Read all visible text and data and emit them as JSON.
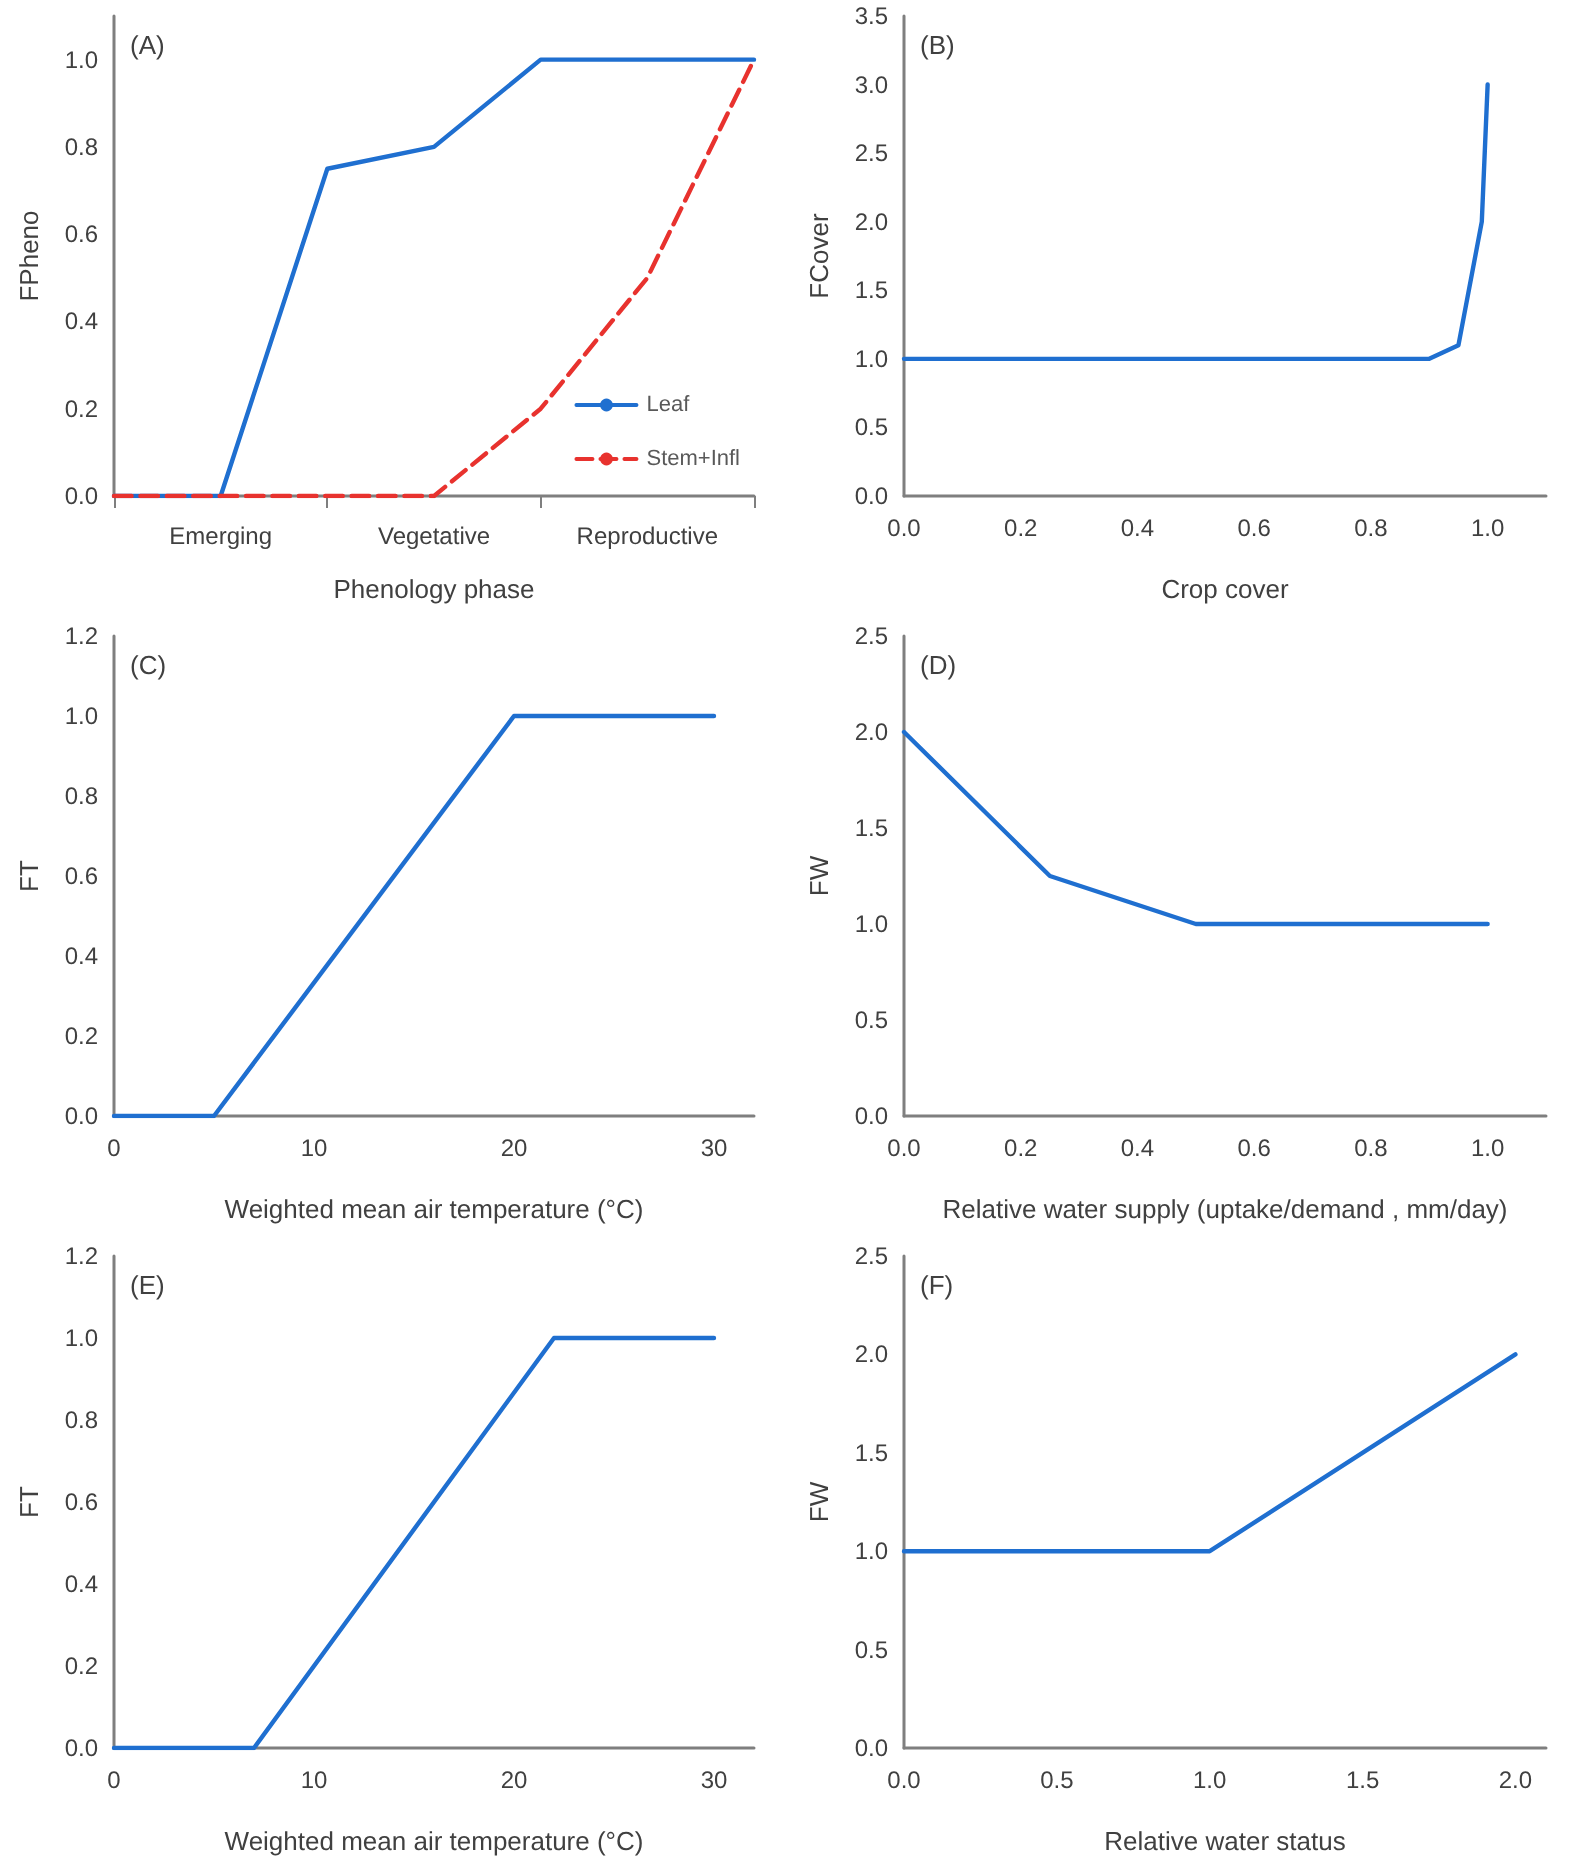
{
  "chart_data": [
    {
      "type": "line",
      "annotations": [
        "(A)"
      ],
      "xlabel": "Phenology phase",
      "ylabel": "FPheno",
      "categories": [
        null,
        "Emerging",
        null,
        "Vegetative",
        null,
        "Reproductive",
        null
      ],
      "ylim": [
        0,
        1.1
      ],
      "yticks": [
        {
          "value": 0,
          "label": "0.0"
        },
        {
          "value": 0.2,
          "label": "0.2"
        },
        {
          "value": 0.4,
          "label": "0.4"
        },
        {
          "value": 0.6,
          "label": "0.6"
        },
        {
          "value": 0.8,
          "label": "0.8"
        },
        {
          "value": 1,
          "label": "1.0"
        }
      ],
      "grid": false,
      "legend": "bottom right",
      "marker": "none",
      "series": [
        {
          "name": "Leaf",
          "color": "#1f6fd0",
          "line_style": "solid",
          "values": [
            0,
            0,
            0.75,
            0.8,
            1,
            1,
            1
          ]
        },
        {
          "name": "Stem+Infl",
          "color": "#e8322e",
          "line_style": "dashed",
          "values": [
            0,
            0,
            0,
            0,
            0.2,
            0.5,
            1
          ]
        }
      ]
    },
    {
      "type": "line",
      "annotations": [
        "(B)"
      ],
      "xlabel": "Crop cover",
      "ylabel": "FCover",
      "xlim": [
        0,
        1.1
      ],
      "xticks": [
        {
          "value": 0,
          "label": "0.0"
        },
        {
          "value": 0.2,
          "label": "0.2"
        },
        {
          "value": 0.4,
          "label": "0.4"
        },
        {
          "value": 0.6,
          "label": "0.6"
        },
        {
          "value": 0.8,
          "label": "0.8"
        },
        {
          "value": 1,
          "label": "1.0"
        }
      ],
      "ylim": [
        0,
        3.5
      ],
      "yticks": [
        {
          "value": 0,
          "label": "0.0"
        },
        {
          "value": 0.5,
          "label": "0.5"
        },
        {
          "value": 1,
          "label": "1.0"
        },
        {
          "value": 1.5,
          "label": "1.5"
        },
        {
          "value": 2,
          "label": "2.0"
        },
        {
          "value": 2.5,
          "label": "2.5"
        },
        {
          "value": 3,
          "label": "3.0"
        },
        {
          "value": 3.5,
          "label": "3.5"
        }
      ],
      "grid": false,
      "marker": "none",
      "series": [
        {
          "color": "#1f6fd0",
          "x": [
            0,
            0.9,
            0.95,
            0.99,
            1
          ],
          "values": [
            1,
            1,
            1.1,
            2,
            3
          ]
        }
      ]
    },
    {
      "type": "line",
      "annotations": [
        "(C)"
      ],
      "xlabel": "Weighted mean air temperature (°C)",
      "ylabel": "FT",
      "xlim": [
        0,
        32
      ],
      "xticks": [
        0,
        10,
        20,
        30
      ],
      "ylim": [
        0,
        1.2
      ],
      "yticks": [
        {
          "value": 0,
          "label": "0.0"
        },
        {
          "value": 0.2,
          "label": "0.2"
        },
        {
          "value": 0.4,
          "label": "0.4"
        },
        {
          "value": 0.6,
          "label": "0.6"
        },
        {
          "value": 0.8,
          "label": "0.8"
        },
        {
          "value": 1,
          "label": "1.0"
        },
        {
          "value": 1.2,
          "label": "1.2"
        }
      ],
      "grid": false,
      "marker": "none",
      "series": [
        {
          "color": "#1f6fd0",
          "x": [
            0,
            5,
            20,
            30
          ],
          "values": [
            0,
            0,
            1,
            1
          ]
        }
      ]
    },
    {
      "type": "line",
      "annotations": [
        "(D)"
      ],
      "xlabel": "Relative water supply (uptake/demand , mm/day)",
      "ylabel": "FW",
      "xlim": [
        0,
        1.1
      ],
      "xticks": [
        {
          "value": 0,
          "label": "0.0"
        },
        {
          "value": 0.2,
          "label": "0.2"
        },
        {
          "value": 0.4,
          "label": "0.4"
        },
        {
          "value": 0.6,
          "label": "0.6"
        },
        {
          "value": 0.8,
          "label": "0.8"
        },
        {
          "value": 1,
          "label": "1.0"
        }
      ],
      "ylim": [
        0,
        2.5
      ],
      "yticks": [
        {
          "value": 0,
          "label": "0.0"
        },
        {
          "value": 0.5,
          "label": "0.5"
        },
        {
          "value": 1,
          "label": "1.0"
        },
        {
          "value": 1.5,
          "label": "1.5"
        },
        {
          "value": 2,
          "label": "2.0"
        },
        {
          "value": 2.5,
          "label": "2.5"
        }
      ],
      "grid": false,
      "marker": "none",
      "series": [
        {
          "color": "#1f6fd0",
          "x": [
            0,
            0.25,
            0.5,
            1
          ],
          "values": [
            2,
            1.25,
            1,
            1
          ]
        }
      ]
    },
    {
      "type": "line",
      "annotations": [
        "(E)"
      ],
      "xlabel": "Weighted mean air temperature (°C)",
      "ylabel": "FT",
      "xlim": [
        0,
        32
      ],
      "xticks": [
        0,
        10,
        20,
        30
      ],
      "ylim": [
        0,
        1.2
      ],
      "yticks": [
        {
          "value": 0,
          "label": "0.0"
        },
        {
          "value": 0.2,
          "label": "0.2"
        },
        {
          "value": 0.4,
          "label": "0.4"
        },
        {
          "value": 0.6,
          "label": "0.6"
        },
        {
          "value": 0.8,
          "label": "0.8"
        },
        {
          "value": 1,
          "label": "1.0"
        },
        {
          "value": 1.2,
          "label": "1.2"
        }
      ],
      "grid": false,
      "marker": "none",
      "series": [
        {
          "color": "#1f6fd0",
          "x": [
            0,
            7,
            22,
            30
          ],
          "values": [
            0,
            0,
            1,
            1
          ]
        }
      ]
    },
    {
      "type": "line",
      "annotations": [
        "(F)"
      ],
      "xlabel": "Relative water status",
      "ylabel": "FW",
      "xlim": [
        0,
        2.1
      ],
      "xticks": [
        {
          "value": 0,
          "label": "0.0"
        },
        {
          "value": 0.5,
          "label": "0.5"
        },
        {
          "value": 1,
          "label": "1.0"
        },
        {
          "value": 1.5,
          "label": "1.5"
        },
        {
          "value": 2,
          "label": "2.0"
        }
      ],
      "ylim": [
        0,
        2.5
      ],
      "yticks": [
        {
          "value": 0,
          "label": "0.0"
        },
        {
          "value": 0.5,
          "label": "0.5"
        },
        {
          "value": 1,
          "label": "1.0"
        },
        {
          "value": 1.5,
          "label": "1.5"
        },
        {
          "value": 2,
          "label": "2.0"
        },
        {
          "value": 2.5,
          "label": "2.5"
        }
      ],
      "grid": false,
      "marker": "none",
      "series": [
        {
          "color": "#1f6fd0",
          "x": [
            0,
            1,
            2
          ],
          "values": [
            1,
            1,
            2
          ]
        }
      ]
    }
  ]
}
